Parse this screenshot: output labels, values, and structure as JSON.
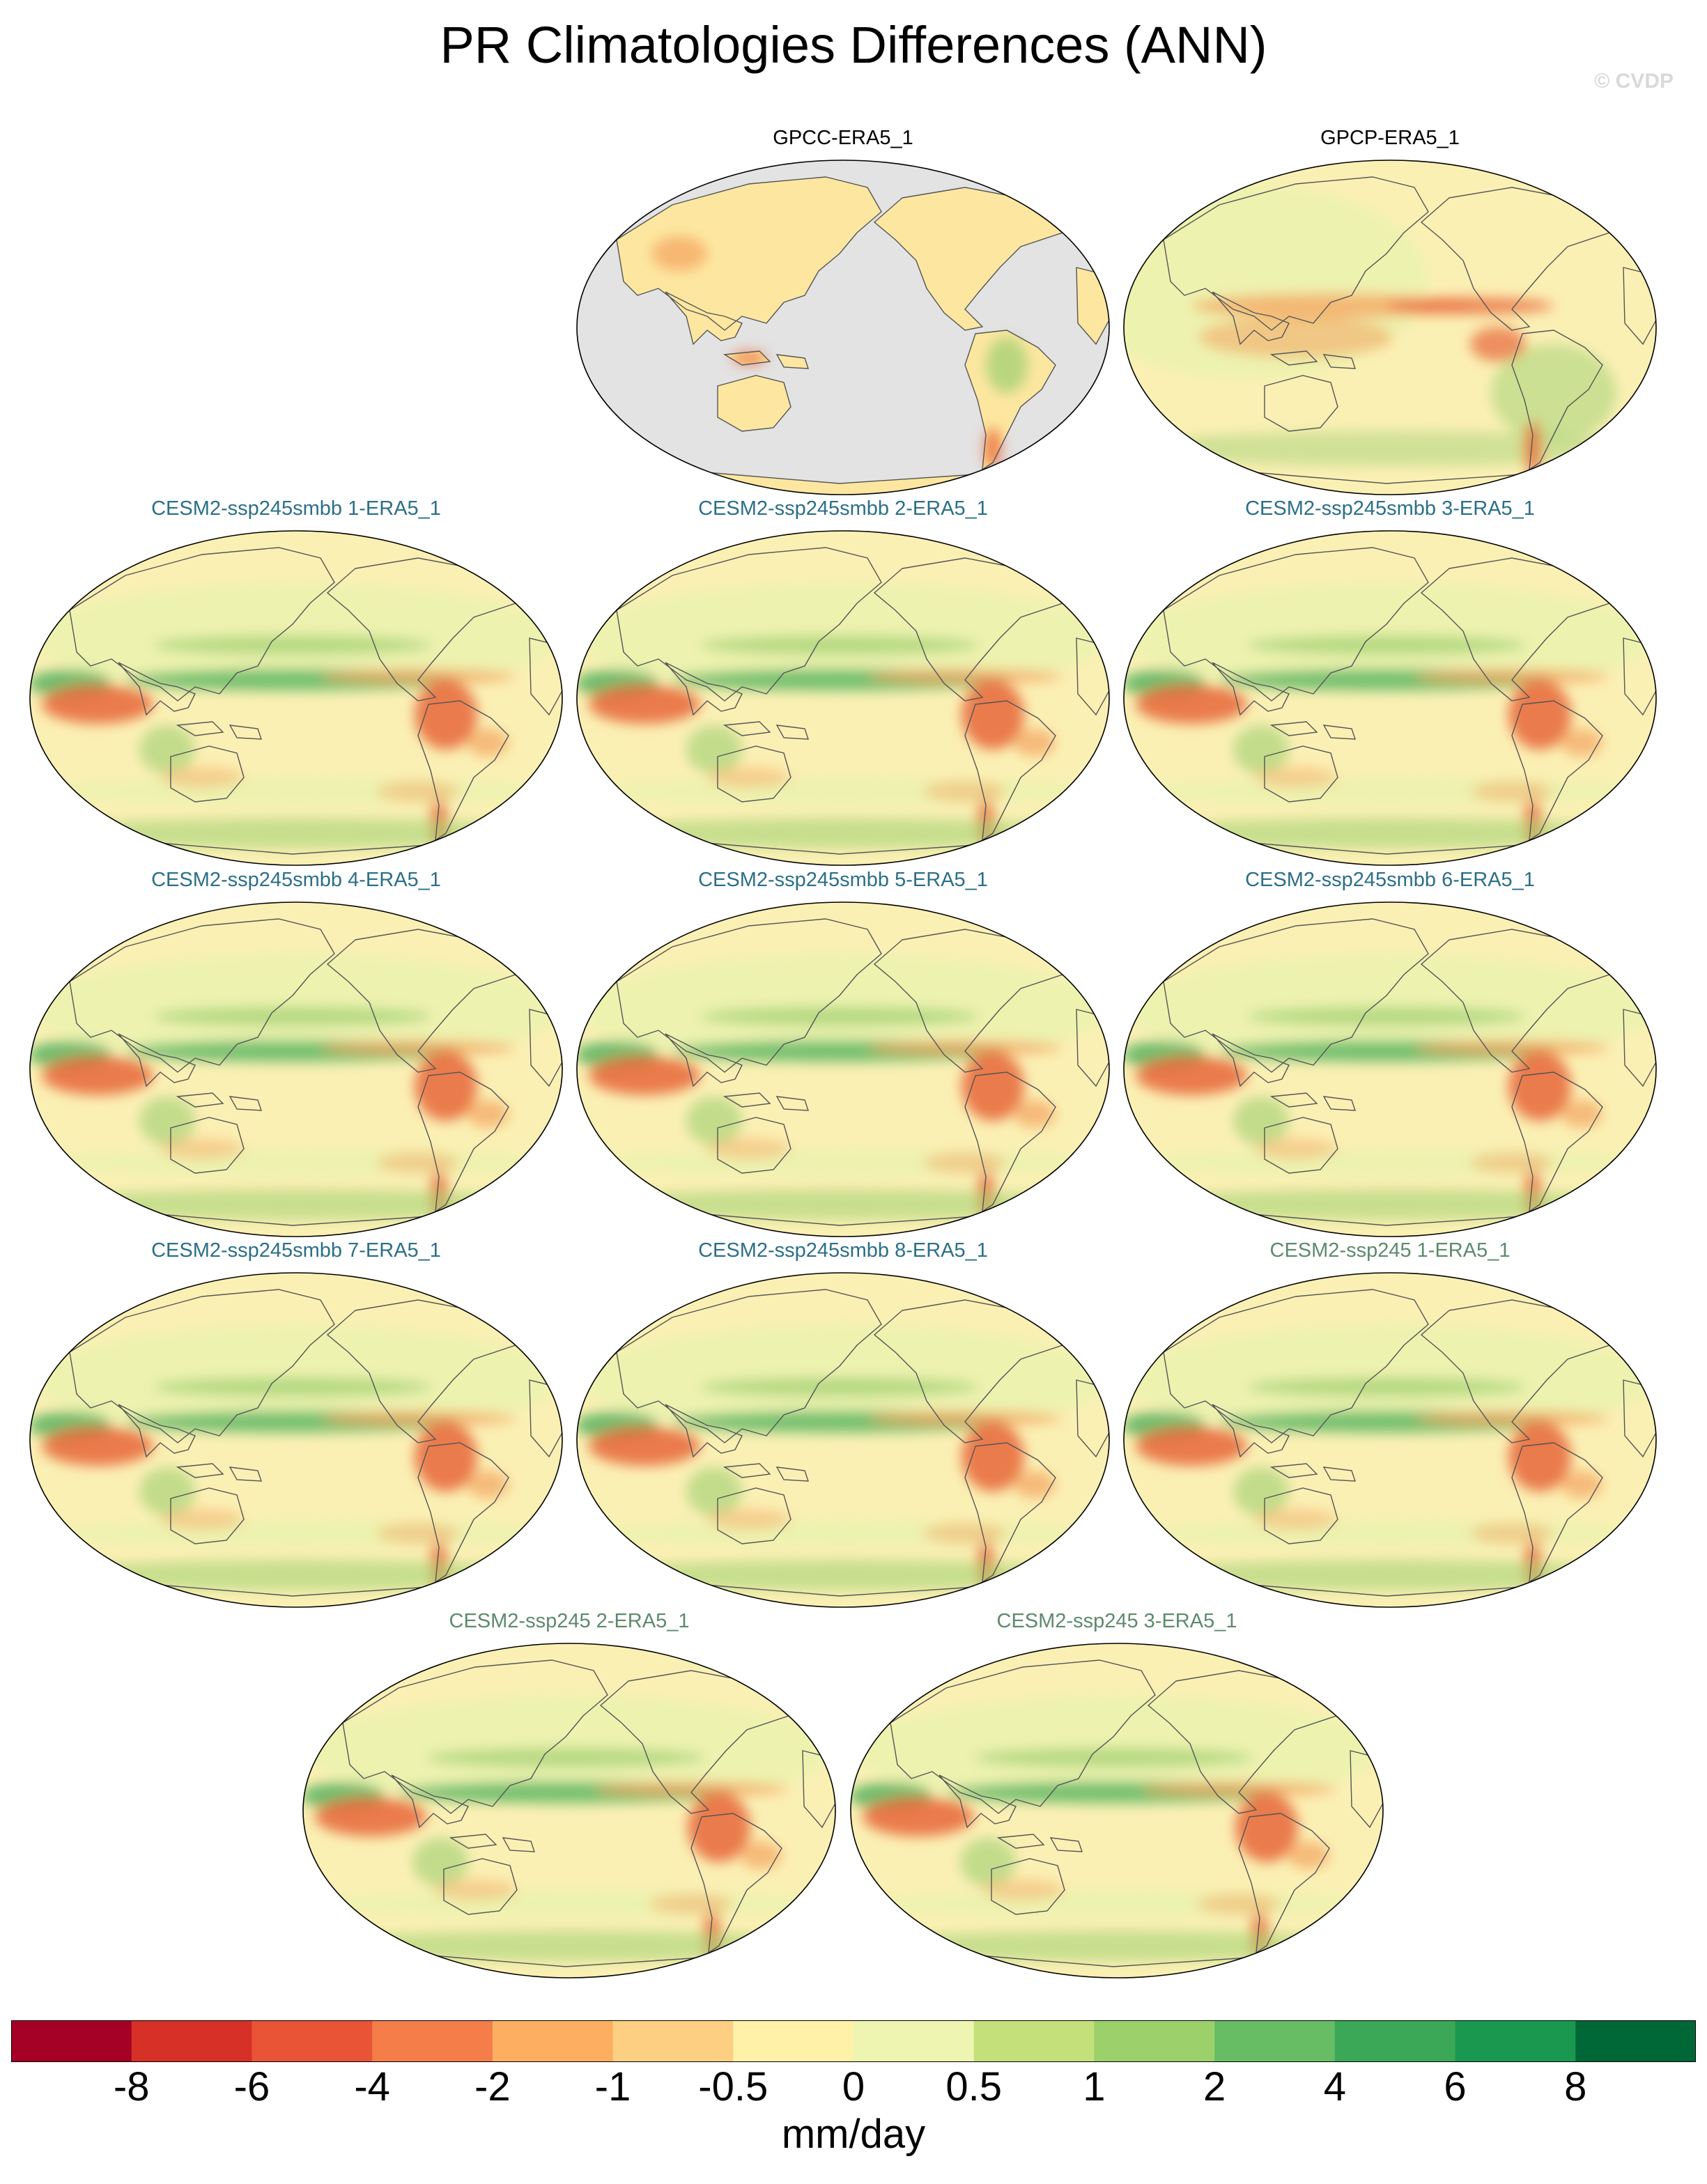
{
  "title": "PR Climatologies Differences (ANN)",
  "credit": "© CVDP",
  "panels": [
    {
      "label": "GPCC-ERA5_1",
      "kind": "obs",
      "land_only": true
    },
    {
      "label": "GPCP-ERA5_1",
      "kind": "obs",
      "land_only": false
    },
    {
      "label": "CESM2-ssp245smbb 1-ERA5_1",
      "kind": "smbb"
    },
    {
      "label": "CESM2-ssp245smbb 2-ERA5_1",
      "kind": "smbb"
    },
    {
      "label": "CESM2-ssp245smbb 3-ERA5_1",
      "kind": "smbb"
    },
    {
      "label": "CESM2-ssp245smbb 4-ERA5_1",
      "kind": "smbb"
    },
    {
      "label": "CESM2-ssp245smbb 5-ERA5_1",
      "kind": "smbb"
    },
    {
      "label": "CESM2-ssp245smbb 6-ERA5_1",
      "kind": "smbb"
    },
    {
      "label": "CESM2-ssp245smbb 7-ERA5_1",
      "kind": "smbb"
    },
    {
      "label": "CESM2-ssp245smbb 8-ERA5_1",
      "kind": "smbb"
    },
    {
      "label": "CESM2-ssp245 1-ERA5_1",
      "kind": "ssp"
    },
    {
      "label": "CESM2-ssp245 2-ERA5_1",
      "kind": "ssp"
    },
    {
      "label": "CESM2-ssp245 3-ERA5_1",
      "kind": "ssp"
    }
  ],
  "colorbar": {
    "units": "mm/day",
    "colors": [
      "#a50026",
      "#d73027",
      "#e95436",
      "#f47d4a",
      "#fdae61",
      "#fdcf82",
      "#fff1a8",
      "#eef5b0",
      "#c4e07a",
      "#9bd06b",
      "#66bd63",
      "#3aa856",
      "#1a9850",
      "#006837"
    ],
    "labels": [
      "-8",
      "-6",
      "-4",
      "-2",
      "-1",
      "-0.5",
      "0",
      "0.5",
      "1",
      "2",
      "4",
      "6",
      "8"
    ]
  },
  "map_colors": {
    "ocean_base": "#fbf0b4",
    "land_base": "#eaf2ae",
    "missing": "#e3e3e3",
    "wet_strong": "#4caf5a",
    "wet": "#9ccf70",
    "dry": "#f4a460",
    "dry_strong": "#e8663a",
    "coast": "#555555"
  }
}
